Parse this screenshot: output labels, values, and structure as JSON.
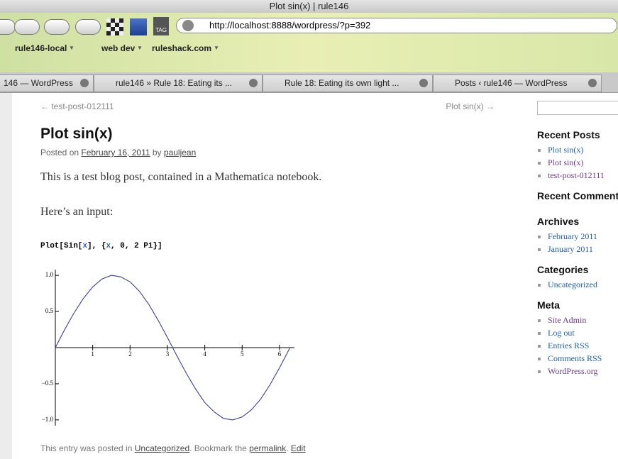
{
  "browser": {
    "window_title": "Plot sin(x) | rule146",
    "url": "http://localhost:8888/wordpress/?p=392",
    "bookmarks": [
      "rule146-local",
      "web dev",
      "ruleshack.com"
    ],
    "tabs": [
      "146 — WordPress",
      "rule146 » Rule 18: Eating its ...",
      "Rule 18: Eating its own light ...",
      "Posts ‹ rule146 — WordPress"
    ]
  },
  "post": {
    "nav_prev": "← test-post-012111",
    "nav_next": "Plot sin(x) →",
    "title": "Plot sin(x)",
    "meta": [
      "Posted on ",
      "February 16, 2011",
      " by ",
      "pauljean"
    ],
    "paragraphs": [
      "This is a test blog post, contained in a Mathematica notebook.",
      "Here’s an input:"
    ],
    "code": [
      "Plot[Sin[",
      "x",
      "], {",
      "x",
      ", 0, 2 Pi}]"
    ],
    "footer": [
      "This entry was posted in ",
      "Uncategorized",
      ". Bookmark the ",
      "permalink",
      ". ",
      "Edit"
    ]
  },
  "sidebar": {
    "sections": [
      {
        "title": "Recent Posts",
        "items": [
          "Plot sin(x)",
          "Plot sin(x)",
          "test-post-012111"
        ]
      },
      {
        "title": "Recent Comments",
        "items": []
      },
      {
        "title": "Archives",
        "items": [
          "February 2011",
          "January 2011"
        ]
      },
      {
        "title": "Categories",
        "items": [
          "Uncategorized"
        ]
      },
      {
        "title": "Meta",
        "items": [
          "Site Admin",
          "Log out",
          "Entries RSS",
          "Comments RSS",
          "WordPress.org"
        ]
      }
    ]
  },
  "chart_data": {
    "type": "line",
    "x": [
      0,
      0.25,
      0.5,
      0.75,
      1,
      1.25,
      1.5,
      1.75,
      2,
      2.25,
      2.5,
      2.75,
      3,
      3.25,
      3.5,
      3.75,
      4,
      4.25,
      4.5,
      4.75,
      5,
      5.25,
      5.5,
      5.75,
      6,
      6.25,
      6.28
    ],
    "series": [
      {
        "color": "#3b3b9a",
        "values": [
          0,
          0.25,
          0.48,
          0.68,
          0.84,
          0.95,
          1.0,
          0.98,
          0.91,
          0.78,
          0.6,
          0.38,
          0.14,
          -0.11,
          -0.35,
          -0.57,
          -0.76,
          -0.89,
          -0.98,
          -1.0,
          -0.96,
          -0.86,
          -0.71,
          -0.51,
          -0.28,
          -0.03,
          0
        ]
      }
    ],
    "xlim": [
      0,
      6.4
    ],
    "ylim": [
      -1.08,
      1.08
    ],
    "xticks": [
      1,
      2,
      3,
      4,
      5,
      6
    ],
    "yticks": [
      {
        "value": -1,
        "label": "−1.0"
      },
      {
        "value": -0.5,
        "label": "−0.5"
      },
      {
        "value": 0.5,
        "label": "0.5"
      },
      {
        "value": 1,
        "label": "1.0"
      }
    ]
  }
}
